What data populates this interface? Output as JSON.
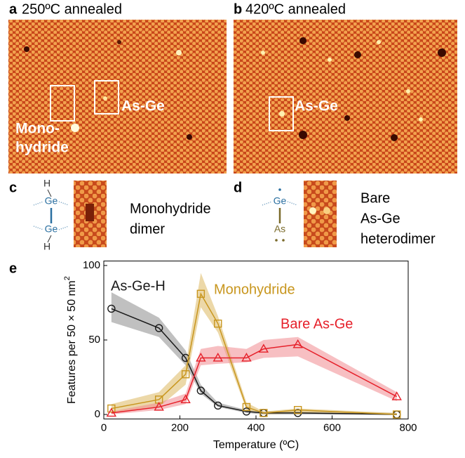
{
  "panels": {
    "a": {
      "label": "a",
      "title": "250ºC annealed",
      "annotations": [
        "As-Ge",
        "Mono-",
        "hydride"
      ]
    },
    "b": {
      "label": "b",
      "title": "420ºC annealed",
      "annotations": [
        "As-Ge"
      ]
    },
    "c": {
      "label": "c",
      "atoms": [
        "H",
        "Ge",
        "Ge",
        "H"
      ],
      "caption": [
        "Monohydride",
        "dimer"
      ]
    },
    "d": {
      "label": "d",
      "atoms": [
        "Ge",
        "As"
      ],
      "caption": [
        "Bare",
        "As-Ge",
        "heterodimer"
      ]
    },
    "e": {
      "label": "e"
    }
  },
  "chart_data": {
    "type": "line",
    "xlabel": "Temperature (ºC)",
    "ylabel": "Features per 50 × 50 nm",
    "ylabel_superscript": "2",
    "xlim": [
      0,
      800
    ],
    "ylim": [
      -3,
      103
    ],
    "xticks": [
      0,
      200,
      400,
      600,
      800
    ],
    "yticks": [
      0,
      50,
      100
    ],
    "series": [
      {
        "name": "As-Ge-H",
        "color": "#1a1a1a",
        "band_color": "#8c8c8c",
        "marker": "circle",
        "x": [
          20,
          145,
          215,
          255,
          300,
          375,
          420,
          510,
          770
        ],
        "values": [
          71,
          58,
          38,
          16,
          6,
          2,
          1,
          1,
          0
        ],
        "lower": [
          62,
          52,
          33,
          14,
          5,
          1,
          0,
          0,
          0
        ],
        "upper": [
          82,
          65,
          43,
          20,
          8,
          3,
          2,
          2,
          1
        ]
      },
      {
        "name": "Monohydride",
        "color": "#c8961e",
        "band_color": "#dcb860",
        "marker": "square",
        "x": [
          20,
          145,
          215,
          255,
          300,
          375,
          420,
          510,
          770
        ],
        "values": [
          4,
          10,
          27,
          81,
          61,
          5,
          1,
          3,
          0
        ],
        "lower": [
          1,
          5,
          20,
          72,
          55,
          3,
          0,
          1,
          0
        ],
        "upper": [
          7,
          15,
          33,
          95,
          66,
          8,
          2,
          4,
          1
        ]
      },
      {
        "name": "Bare As-Ge",
        "color": "#e6202a",
        "band_color": "#f08a90",
        "marker": "triangle",
        "x": [
          20,
          145,
          215,
          255,
          300,
          375,
          420,
          510,
          770
        ],
        "values": [
          1,
          5,
          10,
          38,
          38,
          38,
          44,
          47,
          12
        ],
        "lower": [
          0,
          3,
          7,
          33,
          34,
          35,
          38,
          39,
          9
        ],
        "upper": [
          2,
          8,
          14,
          44,
          46,
          44,
          50,
          52,
          15
        ]
      }
    ]
  }
}
